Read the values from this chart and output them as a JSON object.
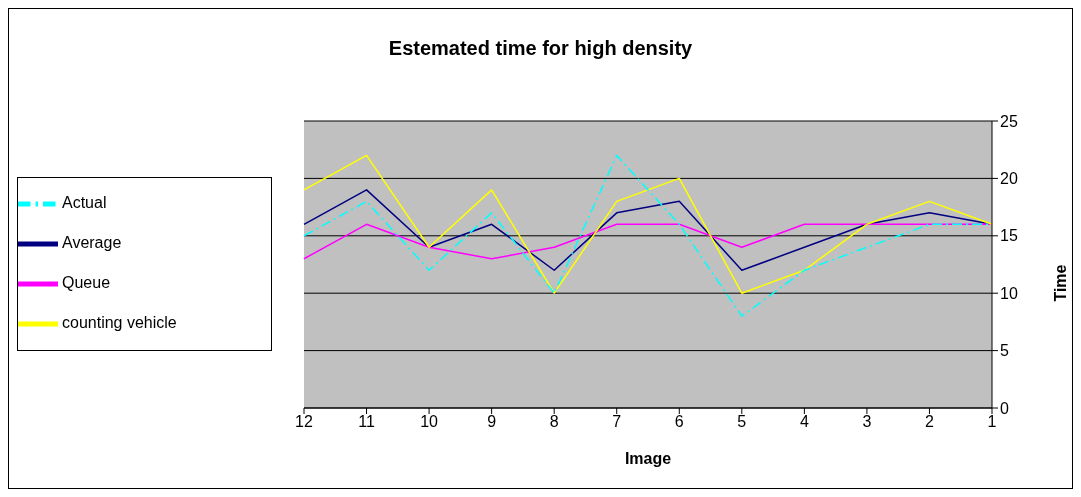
{
  "chart_data": {
    "type": "line",
    "title": "Estemated time for high density",
    "xlabel": "Image",
    "ylabel": "Time",
    "categories": [
      "12",
      "11",
      "10",
      "9",
      "8",
      "7",
      "6",
      "5",
      "4",
      "3",
      "2",
      "1"
    ],
    "series": [
      {
        "name": "Average",
        "color": "#000080",
        "values": [
          16,
          19,
          14,
          16,
          12,
          17,
          18,
          12,
          14,
          16,
          17,
          16
        ]
      },
      {
        "name": "Queue",
        "color": "#ff00ff",
        "values": [
          13,
          16,
          14,
          13,
          14,
          16,
          16,
          14,
          16,
          16,
          16,
          16
        ]
      },
      {
        "name": "counting vehicle",
        "color": "#ffff00",
        "values": [
          19,
          22,
          14,
          19,
          10,
          18,
          20,
          10,
          12,
          16,
          18,
          16
        ]
      },
      {
        "name": "Actual",
        "color": "#00ffff",
        "line_style": "dashed",
        "values": [
          15,
          18,
          12,
          17,
          10,
          22,
          16,
          8,
          12,
          14,
          16,
          16
        ]
      }
    ],
    "ylim": [
      0,
      25
    ],
    "yticks": [
      0,
      5,
      10,
      15,
      20,
      25
    ],
    "grid": "y",
    "legend": "left",
    "marker": "none"
  }
}
